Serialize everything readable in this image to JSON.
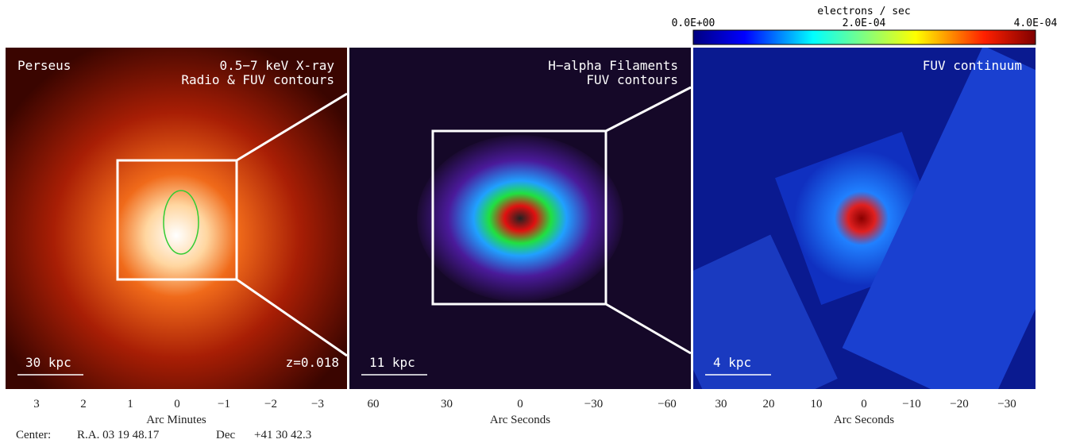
{
  "colorbar": {
    "title": "electrons / sec",
    "labels": [
      "0.0E+00",
      "2.0E-04",
      "4.0E-04"
    ]
  },
  "panels": [
    {
      "labels_left": [
        "Perseus"
      ],
      "labels_right": [
        "0.5−7 keV X-ray",
        "Radio & FUV contours"
      ],
      "scale_bar": "30 kpc",
      "redshift": "z=0.018",
      "ticks": [
        "3",
        "2",
        "1",
        "0",
        "−1",
        "−2",
        "−3"
      ],
      "axis_label": "Arc Minutes"
    },
    {
      "labels_left": [],
      "labels_right": [
        "H−alpha Filaments",
        "FUV contours"
      ],
      "scale_bar": "11 kpc",
      "ticks": [
        "60",
        "30",
        "0",
        "−30",
        "−60"
      ],
      "axis_label": "Arc Seconds"
    },
    {
      "labels_left": [],
      "labels_right": [
        "FUV continuum"
      ],
      "scale_bar": "4 kpc",
      "ticks": [
        "30",
        "20",
        "10",
        "0",
        "−10",
        "−20",
        "−30"
      ],
      "axis_label": "Arc Seconds"
    }
  ],
  "center": [
    "Center:",
    "R.A. 03 19 48.17",
    "Dec",
    "+41 30 42.3"
  ]
}
